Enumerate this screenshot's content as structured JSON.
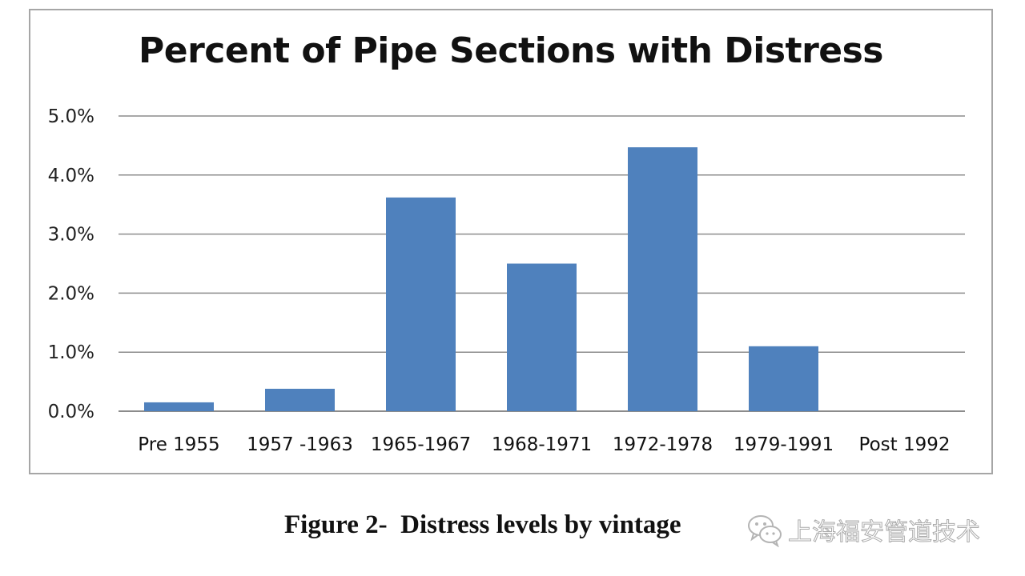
{
  "chart_data": {
    "type": "bar",
    "title": "Percent of Pipe Sections with Distress",
    "categories": [
      "Pre 1955",
      "1957 -1963",
      "1965-1967",
      "1968-1971",
      "1972-1978",
      "1979-1991",
      "Post 1992"
    ],
    "values": [
      0.15,
      0.38,
      3.62,
      2.5,
      4.47,
      1.1,
      0
    ],
    "y_ticks": [
      "0.0%",
      "1.0%",
      "2.0%",
      "3.0%",
      "4.0%",
      "5.0%"
    ],
    "ylim": [
      0,
      5
    ],
    "y_unit": "%",
    "grid": true,
    "legend": "none",
    "bar_color": "#4f81bd",
    "grid_color": "#8c8c8c"
  },
  "caption": "Figure 2-  Distress levels by vintage",
  "watermark": {
    "text": "上海福安管道技术",
    "icon": "wechat-icon"
  }
}
